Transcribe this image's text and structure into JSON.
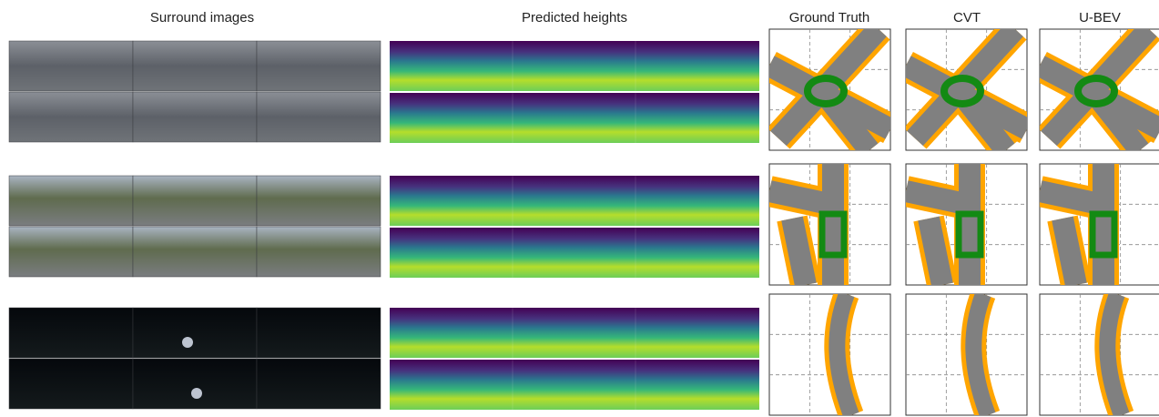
{
  "headers": {
    "surround": "Surround images",
    "heights": "Predicted heights"
  },
  "columns": [
    "Ground Truth",
    "CVT",
    "U-BEV"
  ]
}
